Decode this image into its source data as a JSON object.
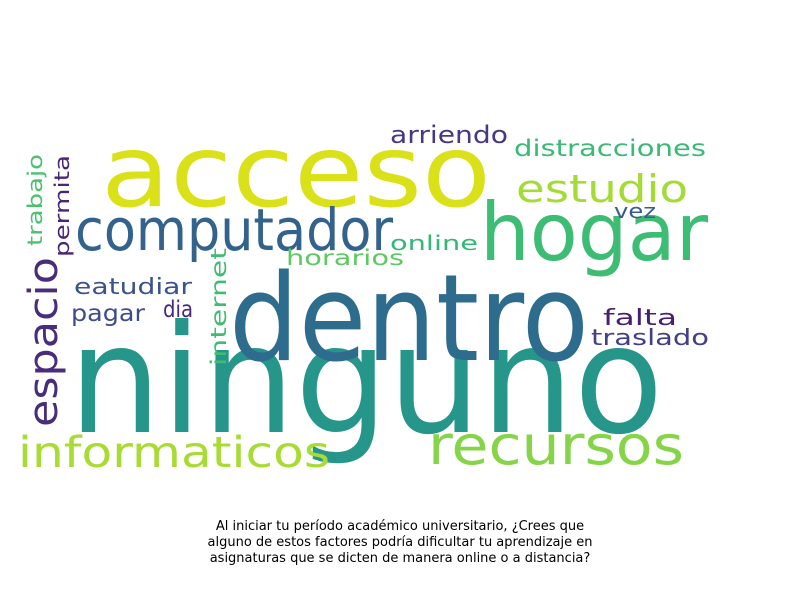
{
  "wordcloud": {
    "words": [
      {
        "text": "ninguno",
        "color": "#26968a"
      },
      {
        "text": "acceso",
        "color": "#dae119"
      },
      {
        "text": "dentro",
        "color": "#2e6c8e"
      },
      {
        "text": "hogar",
        "color": "#3dbc74"
      },
      {
        "text": "computador",
        "color": "#33628d"
      },
      {
        "text": "recursos",
        "color": "#86d549"
      },
      {
        "text": "informaticos",
        "color": "#a8db34"
      },
      {
        "text": "espacio",
        "color": "#472d7b"
      },
      {
        "text": "estudio",
        "color": "#a5db36"
      },
      {
        "text": "distracciones",
        "color": "#3aba76"
      },
      {
        "text": "arriendo",
        "color": "#443983"
      },
      {
        "text": "trabajo",
        "color": "#4ac16d"
      },
      {
        "text": "permita",
        "color": "#482575"
      },
      {
        "text": "online",
        "color": "#35b779"
      },
      {
        "text": "vez",
        "color": "#365d8d"
      },
      {
        "text": "horarios",
        "color": "#5ec962"
      },
      {
        "text": "eatudiar",
        "color": "#3b528b"
      },
      {
        "text": "internet",
        "color": "#3fbc73"
      },
      {
        "text": "pagar",
        "color": "#3e4c8a"
      },
      {
        "text": "dia",
        "color": "#482878"
      },
      {
        "text": "falta",
        "color": "#481f70"
      },
      {
        "text": "traslado",
        "color": "#433e85"
      }
    ]
  },
  "caption": {
    "line1": "Al iniciar tu período académico universitario, ¿Crees que",
    "line2": "alguno de estos factores podría dificultar tu aprendizaje en",
    "line3": "asignaturas que se dicten de manera online o a distancia?"
  }
}
